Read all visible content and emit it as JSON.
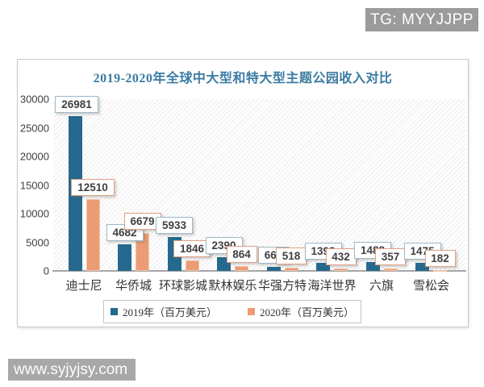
{
  "watermarks": {
    "tg_badge": "TG: MYYJJPP",
    "website": "www.syjyjsy.com"
  },
  "chart_data": {
    "type": "bar",
    "title": "2019-2020年全球中大型和特大型主题公园收入对比",
    "categories": [
      "迪士尼",
      "华侨城",
      "环球影城",
      "默林娱乐",
      "华强方特",
      "海洋世界",
      "六旗",
      "雪松会"
    ],
    "series": [
      {
        "name": "2019年（百万美元）",
        "color": "#26698e",
        "values": [
          26981,
          4682,
          5933,
          2390,
          668,
          1398,
          1488,
          1475
        ]
      },
      {
        "name": "2020年（百万美元）",
        "color": "#eb9c74",
        "values": [
          12510,
          6679,
          1846,
          864,
          518,
          432,
          357,
          182
        ]
      }
    ],
    "xlabel": "",
    "ylabel": "",
    "ylim": [
      0,
      30000
    ],
    "ytick_step": 5000,
    "yticks": [
      0,
      5000,
      10000,
      15000,
      20000,
      25000,
      30000
    ],
    "grid": false,
    "legend_position": "bottom",
    "data_labels": true,
    "label_border_colors": [
      "#9fb9c9",
      "#e0a184"
    ],
    "plot_background": "diagonal-hatch"
  }
}
